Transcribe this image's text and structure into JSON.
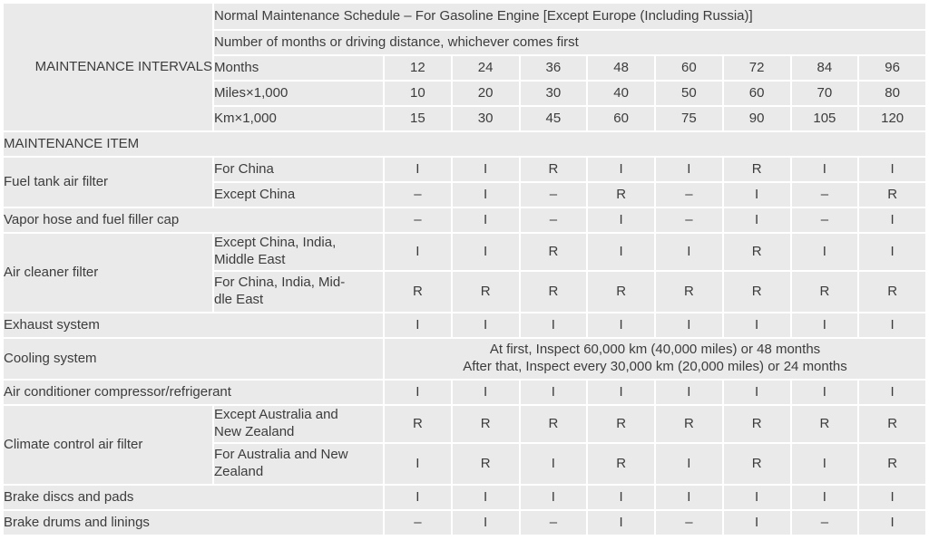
{
  "table": {
    "corner_label": "MAINTENANCE INTERVALS",
    "title": "Normal Maintenance Schedule – For Gasoline Engine [Except Europe (Including Russia)]",
    "subtitle": "Number of months or driving distance, whichever comes first",
    "intervals": [
      {
        "label": "Months",
        "values": [
          "12",
          "24",
          "36",
          "48",
          "60",
          "72",
          "84",
          "96"
        ]
      },
      {
        "label": "Miles×1,000",
        "values": [
          "10",
          "20",
          "30",
          "40",
          "50",
          "60",
          "70",
          "80"
        ]
      },
      {
        "label": "Km×1,000",
        "values": [
          "15",
          "30",
          "45",
          "60",
          "75",
          "90",
          "105",
          "120"
        ]
      }
    ],
    "section_label": "MAINTENANCE ITEM",
    "items": [
      {
        "name": "Fuel tank air filter",
        "variants": [
          {
            "condition": "For China",
            "marks": [
              "I",
              "I",
              "R",
              "I",
              "I",
              "R",
              "I",
              "I"
            ]
          },
          {
            "condition": "Except China",
            "marks": [
              "–",
              "I",
              "–",
              "R",
              "–",
              "I",
              "–",
              "R"
            ]
          }
        ]
      },
      {
        "name": "Vapor hose and fuel filler cap",
        "marks": [
          "–",
          "I",
          "–",
          "I",
          "–",
          "I",
          "–",
          "I"
        ]
      },
      {
        "name": "Air cleaner filter",
        "variants": [
          {
            "condition": "Except China, India,\nMiddle East",
            "marks": [
              "I",
              "I",
              "R",
              "I",
              "I",
              "R",
              "I",
              "I"
            ]
          },
          {
            "condition": "For China, India, Mid-\ndle East",
            "marks": [
              "R",
              "R",
              "R",
              "R",
              "R",
              "R",
              "R",
              "R"
            ]
          }
        ]
      },
      {
        "name": "Exhaust system",
        "marks": [
          "I",
          "I",
          "I",
          "I",
          "I",
          "I",
          "I",
          "I"
        ]
      },
      {
        "name": "Cooling system",
        "note": "At first, Inspect 60,000 km (40,000 miles) or 48 months\nAfter that, Inspect every 30,000 km (20,000 miles) or 24 months"
      },
      {
        "name": "Air conditioner compressor/refrigerant",
        "marks": [
          "I",
          "I",
          "I",
          "I",
          "I",
          "I",
          "I",
          "I"
        ]
      },
      {
        "name": "Climate control air filter",
        "variants": [
          {
            "condition": "Except Australia and\nNew Zealand",
            "marks": [
              "R",
              "R",
              "R",
              "R",
              "R",
              "R",
              "R",
              "R"
            ]
          },
          {
            "condition": "For Australia and New\nZealand",
            "marks": [
              "I",
              "R",
              "I",
              "R",
              "I",
              "R",
              "I",
              "R"
            ]
          }
        ]
      },
      {
        "name": "Brake discs and pads",
        "marks": [
          "I",
          "I",
          "I",
          "I",
          "I",
          "I",
          "I",
          "I"
        ]
      },
      {
        "name": "Brake drums and linings",
        "marks": [
          "–",
          "I",
          "–",
          "I",
          "–",
          "I",
          "–",
          "I"
        ]
      }
    ],
    "colors": {
      "cell_bg": "#eaeaea",
      "gap": "#ffffff",
      "text": "#3c3c3c"
    }
  }
}
